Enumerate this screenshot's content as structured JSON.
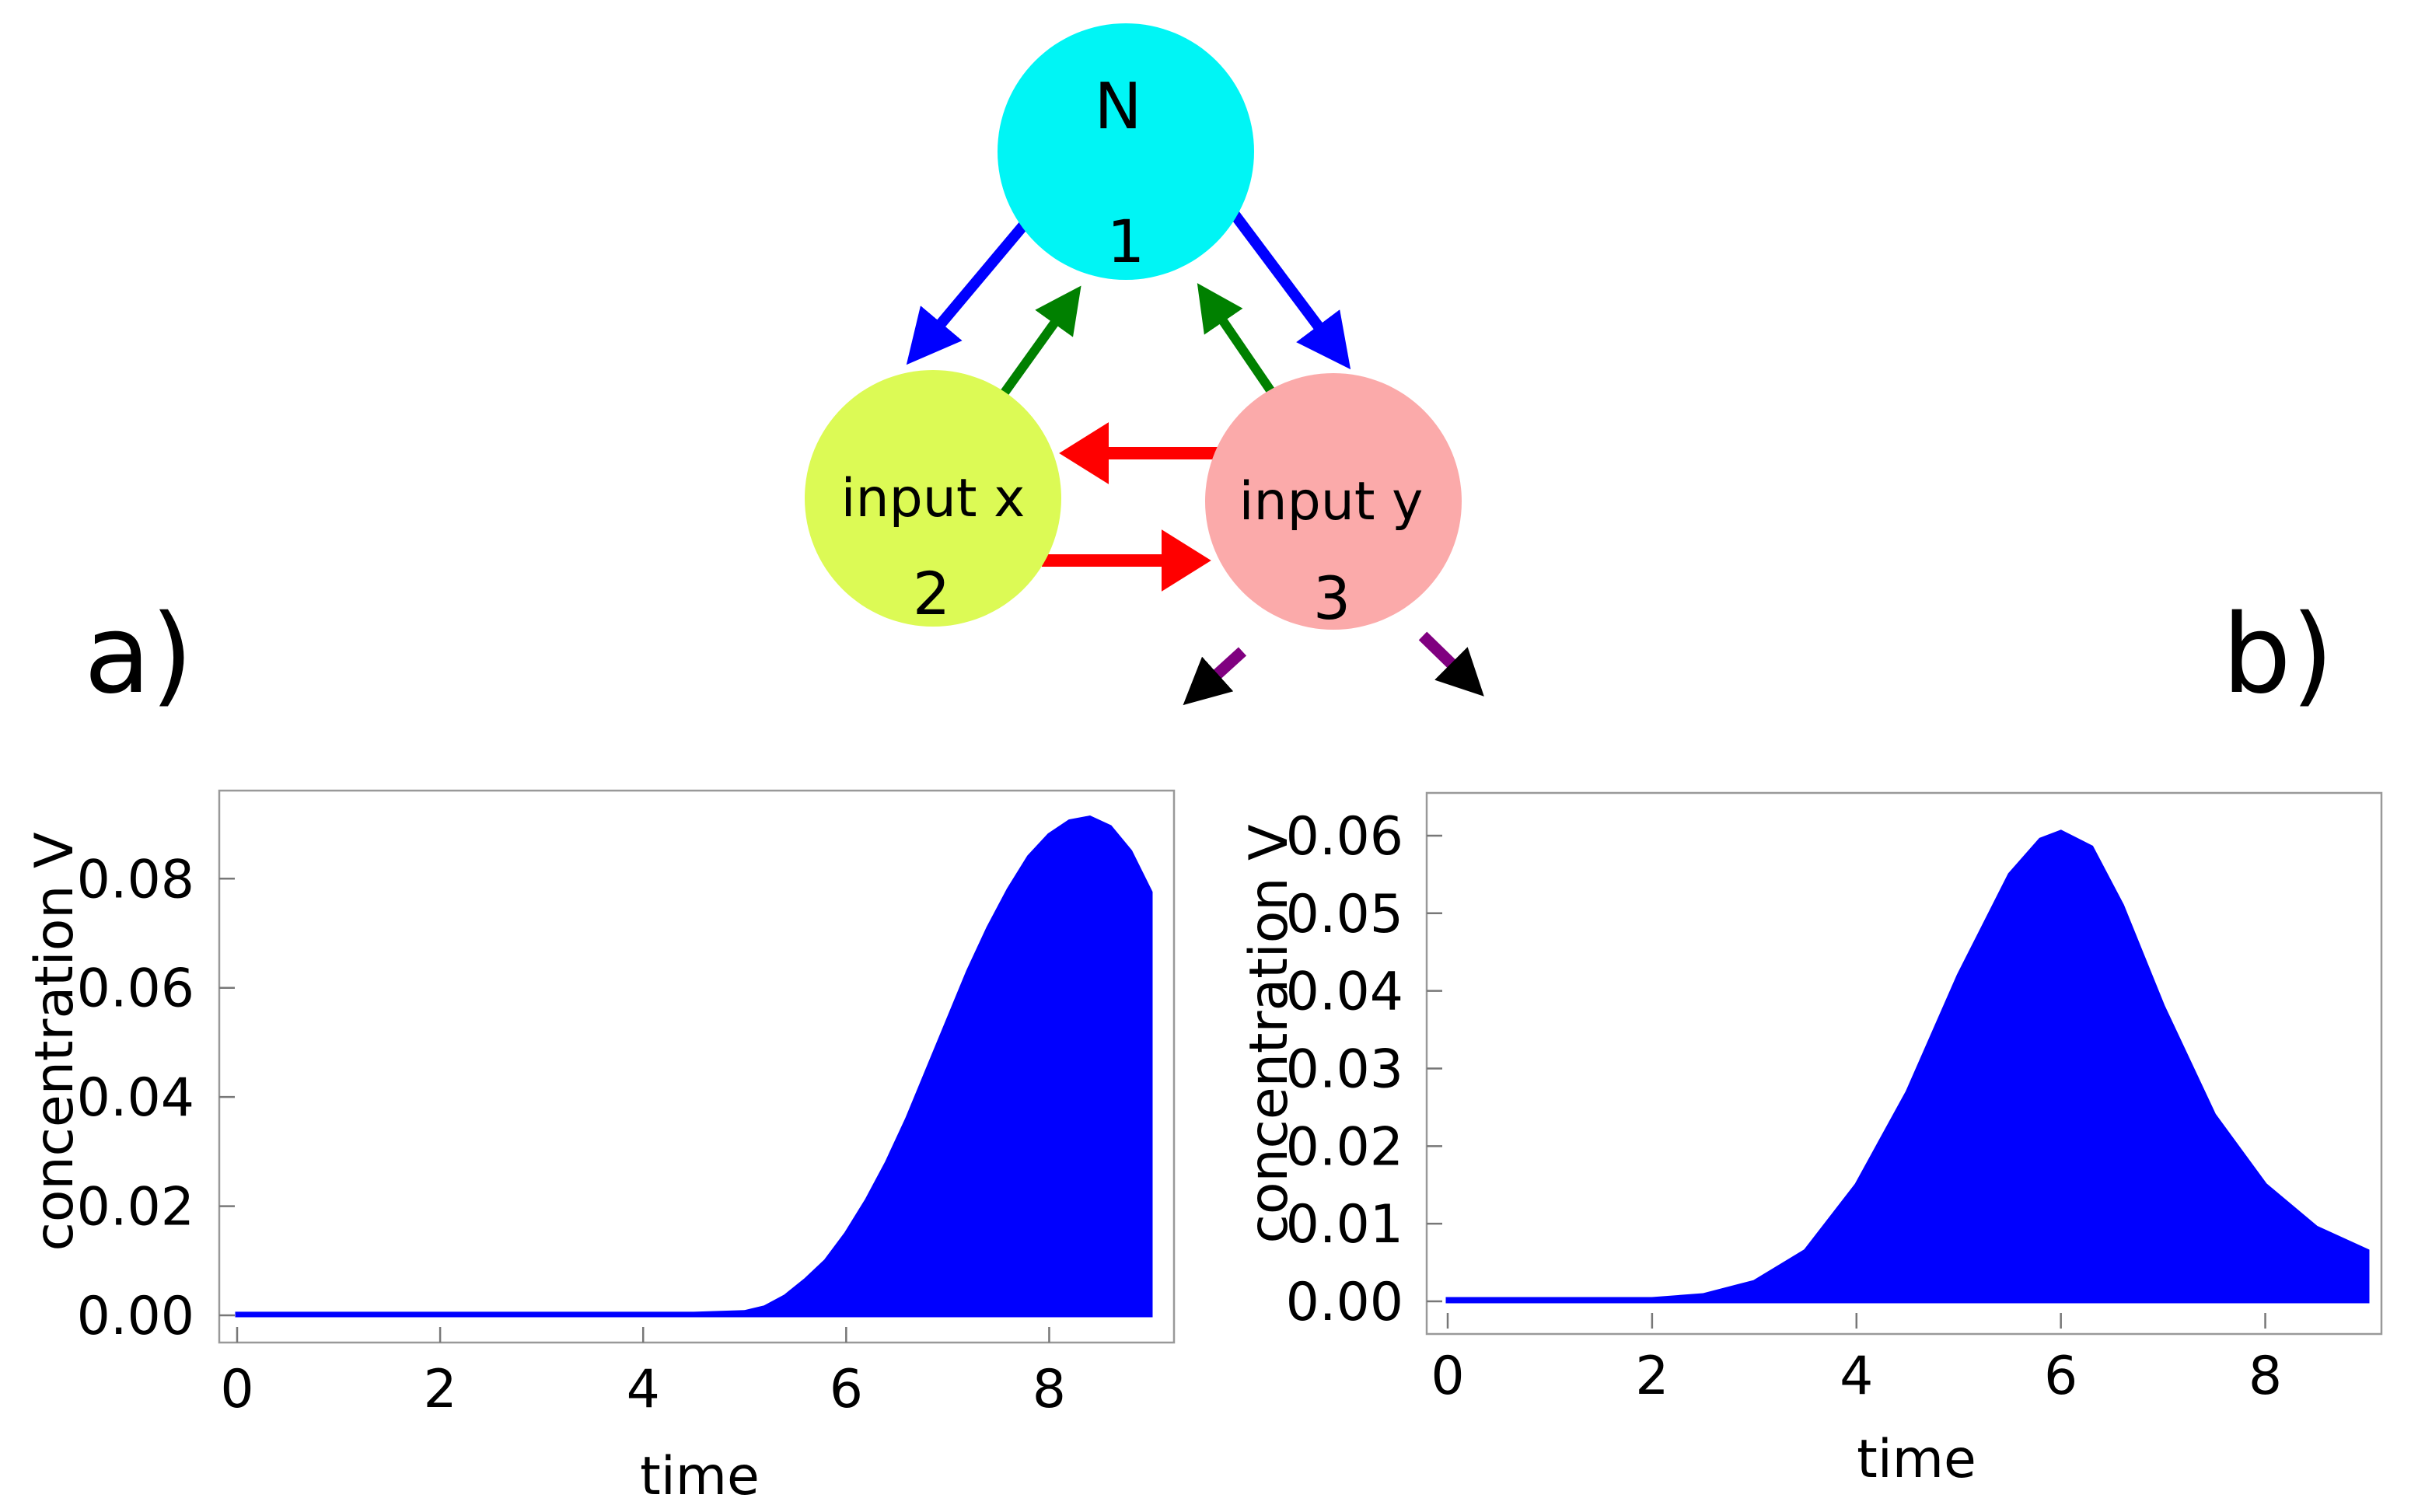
{
  "diagram": {
    "nodes": [
      {
        "id": "N",
        "label": "N",
        "number": "1",
        "color": "#00f5f5"
      },
      {
        "id": "x",
        "label": "input x",
        "number": "2",
        "color": "#dcfa55"
      },
      {
        "id": "y",
        "label": "input y",
        "number": "3",
        "color": "#fbaaaa"
      }
    ],
    "edges": [
      {
        "from": "N",
        "to": "x",
        "color": "#0000ff"
      },
      {
        "from": "N",
        "to": "y",
        "color": "#0000ff"
      },
      {
        "from": "x",
        "to": "N",
        "color": "#008000"
      },
      {
        "from": "y",
        "to": "N",
        "color": "#008000"
      },
      {
        "from": "y",
        "to": "x",
        "color": "#ff0000"
      },
      {
        "from": "x",
        "to": "y",
        "color": "#ff0000"
      }
    ],
    "pointer_color": "#800080"
  },
  "panels": {
    "a": {
      "label": "a)"
    },
    "b": {
      "label": "b)"
    }
  },
  "chart_data": [
    {
      "type": "area",
      "panel": "a)",
      "xlabel": "time",
      "ylabel": "concentration V",
      "xlim": [
        0,
        9
      ],
      "ylim": [
        0,
        0.092
      ],
      "xticks": [
        "0",
        "2",
        "4",
        "6",
        "8"
      ],
      "yticks": [
        "0.00",
        "0.02",
        "0.04",
        "0.06",
        "0.08"
      ],
      "color": "#0000ff",
      "x": [
        0,
        1,
        2,
        3,
        4,
        4.5,
        5.0,
        5.2,
        5.4,
        5.6,
        5.8,
        6.0,
        6.2,
        6.4,
        6.6,
        6.8,
        7.0,
        7.2,
        7.4,
        7.6,
        7.8,
        8.0,
        8.2,
        8.4,
        8.6,
        8.8,
        9.0
      ],
      "y": [
        0.0003,
        0.0003,
        0.0003,
        0.0003,
        0.0003,
        0.0003,
        0.0006,
        0.0015,
        0.0035,
        0.0065,
        0.01,
        0.015,
        0.021,
        0.028,
        0.036,
        0.045,
        0.054,
        0.063,
        0.071,
        0.078,
        0.084,
        0.088,
        0.0905,
        0.0912,
        0.0895,
        0.085,
        0.0775
      ]
    },
    {
      "type": "area",
      "panel": "b)",
      "xlabel": "time",
      "ylabel": "concentration V",
      "xlim": [
        0,
        9
      ],
      "ylim": [
        0,
        0.062
      ],
      "xticks": [
        "0",
        "2",
        "4",
        "6",
        "8"
      ],
      "yticks": [
        "0.00",
        "0.01",
        "0.02",
        "0.03",
        "0.04",
        "0.05",
        "0.06"
      ],
      "color": "#0000ff",
      "x": [
        0,
        1,
        2,
        2.5,
        3,
        3.5,
        4,
        4.5,
        5,
        5.5,
        5.8,
        6,
        6.3,
        6.6,
        7,
        7.5,
        8,
        8.5,
        9
      ],
      "y": [
        0.0003,
        0.0003,
        0.0003,
        0.0008,
        0.0025,
        0.0065,
        0.015,
        0.027,
        0.042,
        0.055,
        0.0595,
        0.0605,
        0.0585,
        0.051,
        0.038,
        0.024,
        0.015,
        0.0095,
        0.0065
      ]
    }
  ]
}
